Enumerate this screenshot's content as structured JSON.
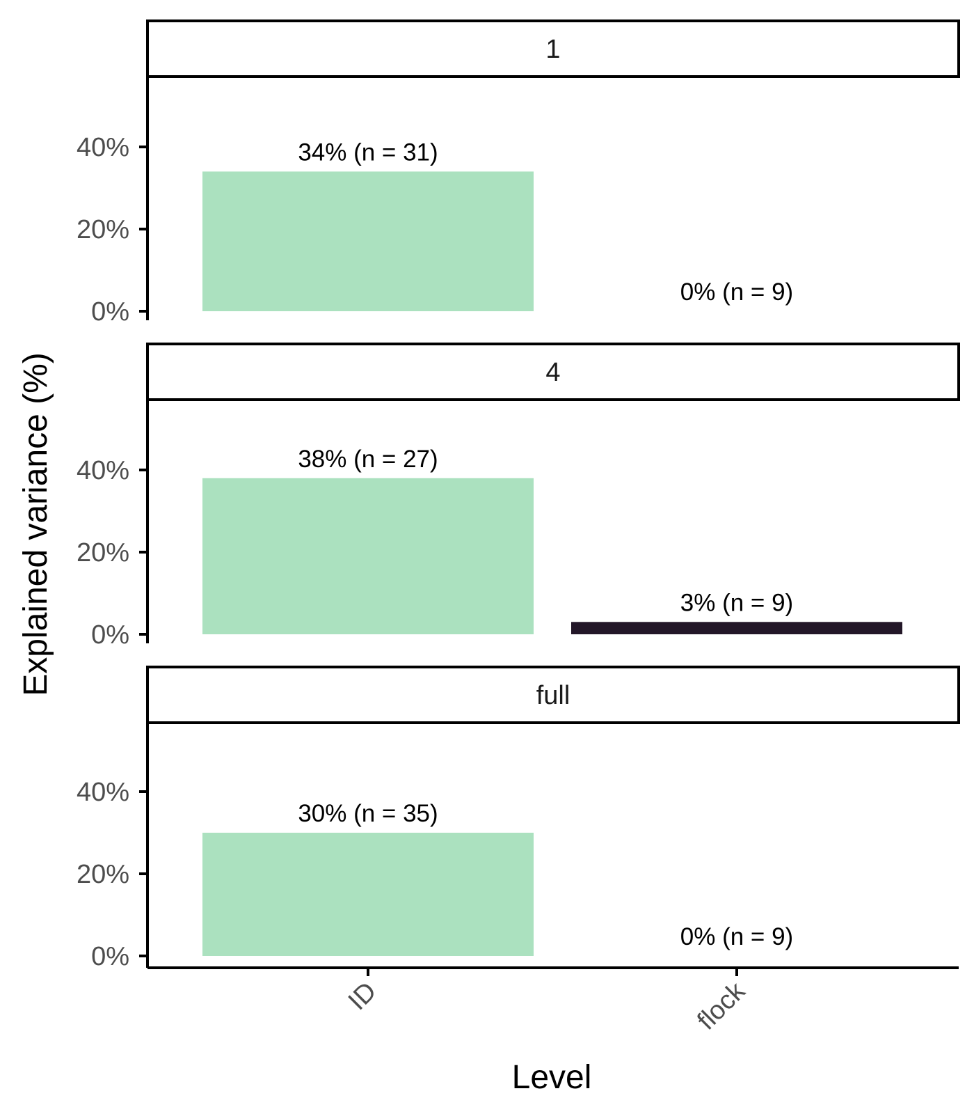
{
  "chart_data": {
    "type": "bar",
    "xlabel": "Level",
    "ylabel": "Explained variance (%)",
    "categories": [
      "ID",
      "flock"
    ],
    "ylim": [
      0,
      56
    ],
    "yticks": [
      0,
      20,
      40
    ],
    "ytick_labels": [
      "0%",
      "20%",
      "40%"
    ],
    "colors": {
      "ID": "#abe1bf",
      "flock": "#231728"
    },
    "panels": [
      {
        "strip": "1",
        "bars": [
          {
            "category": "ID",
            "value": 34,
            "label": "34% (n = 31)"
          },
          {
            "category": "flock",
            "value": 0,
            "label": "0% (n = 9)"
          }
        ]
      },
      {
        "strip": "4",
        "bars": [
          {
            "category": "ID",
            "value": 38,
            "label": "38% (n = 27)"
          },
          {
            "category": "flock",
            "value": 3,
            "label": "3% (n = 9)"
          }
        ]
      },
      {
        "strip": "full",
        "bars": [
          {
            "category": "ID",
            "value": 30,
            "label": "30% (n = 35)"
          },
          {
            "category": "flock",
            "value": 0,
            "label": "0% (n = 9)"
          }
        ]
      }
    ]
  }
}
